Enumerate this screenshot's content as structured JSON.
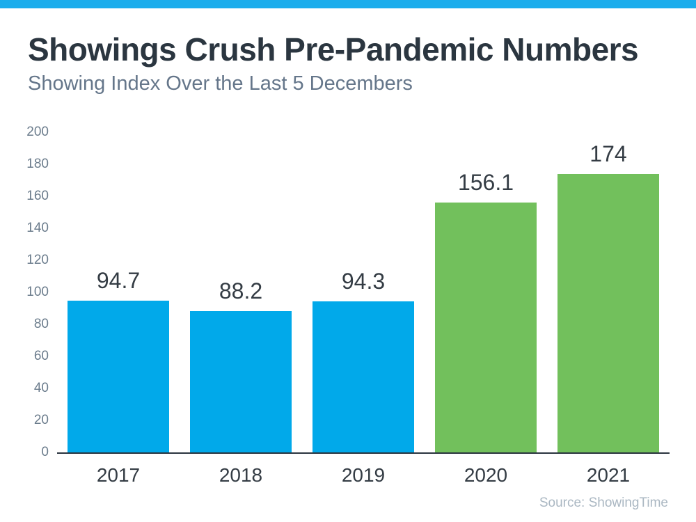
{
  "page": {
    "title": "Showings Crush Pre-Pandemic Numbers",
    "subtitle": "Showing Index Over the Last 5 Decembers",
    "source": "Source: ShowingTime"
  },
  "colors": {
    "top_accent_bar": "#1badec",
    "blue_bar": "#01a9ea",
    "green_bar": "#72c05c",
    "title_text": "#2b3640",
    "subtitle_text": "#65768a",
    "y_axis_label": "#6b7c8c",
    "x_axis_label": "#343c44",
    "data_label": "#343c44",
    "axis_line": "#2a343e",
    "source_text": "#aab7c2"
  },
  "chart_data": {
    "type": "bar",
    "title": "Showings Crush Pre-Pandemic Numbers",
    "subtitle": "Showing Index Over the Last 5 Decembers",
    "categories": [
      "2017",
      "2018",
      "2019",
      "2020",
      "2021"
    ],
    "values": [
      94.7,
      88.2,
      94.3,
      156.1,
      174
    ],
    "value_labels": [
      "94.7",
      "88.2",
      "94.3",
      "156.1",
      "174"
    ],
    "bar_colors": [
      "#01a9ea",
      "#01a9ea",
      "#01a9ea",
      "#72c05c",
      "#72c05c"
    ],
    "xlabel": "",
    "ylabel": "",
    "ylim": [
      0,
      200
    ],
    "yticks": [
      0,
      20,
      40,
      60,
      80,
      100,
      120,
      140,
      160,
      180,
      200
    ],
    "grid": false,
    "legend": false,
    "source": "Source: ShowingTime"
  }
}
